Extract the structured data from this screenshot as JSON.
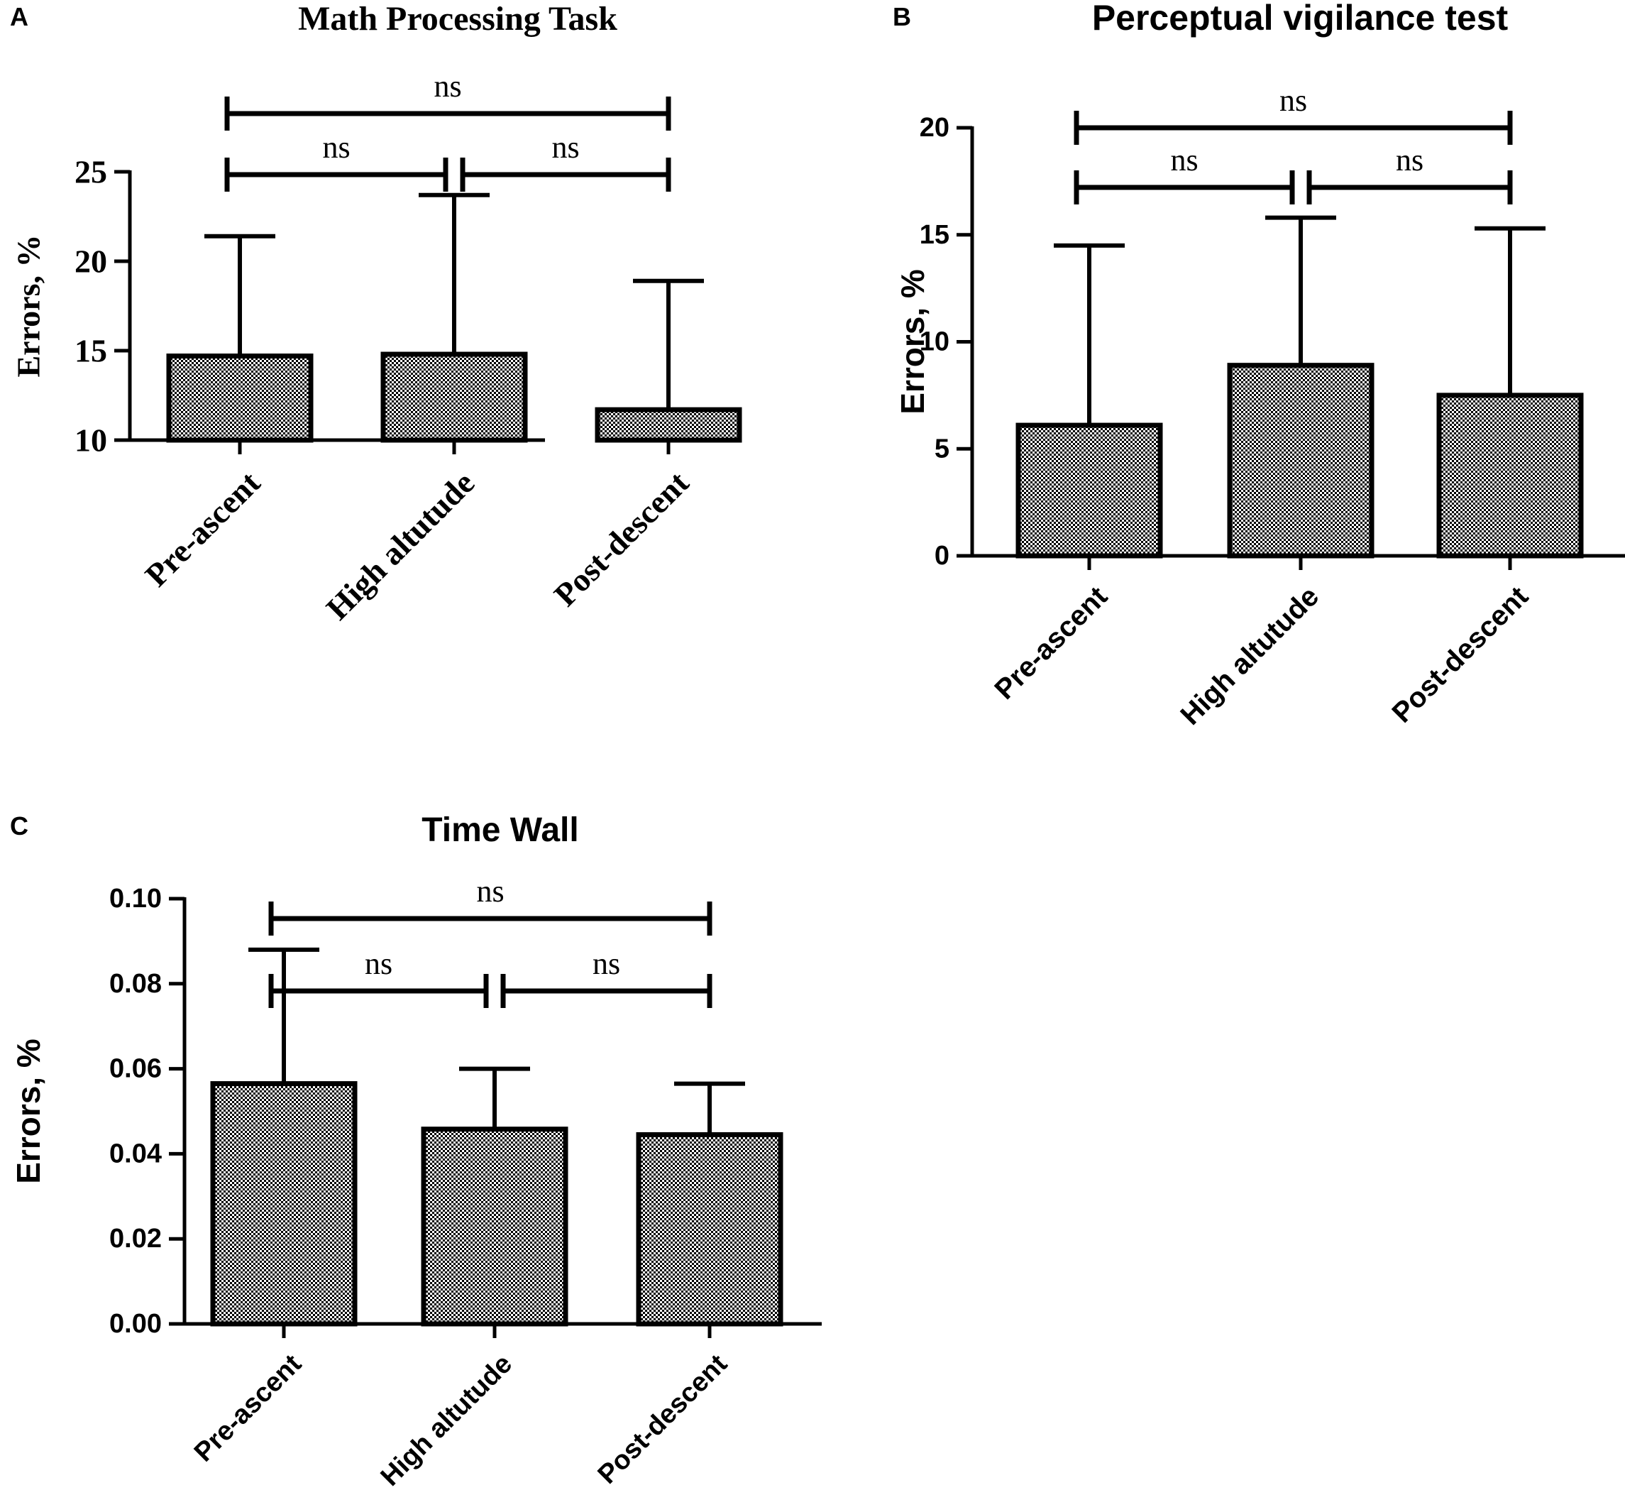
{
  "figure": {
    "panels": [
      "A",
      "B",
      "C"
    ]
  },
  "chart_data": [
    {
      "panel": "A",
      "type": "bar",
      "title": "Math Processing Task",
      "xlabel": "",
      "ylabel": "Errors, %",
      "categories": [
        "Pre-ascent",
        "High altutude",
        "Post-descent"
      ],
      "values": [
        14.7,
        14.8,
        11.7
      ],
      "error_upper": [
        21.4,
        23.7,
        18.9
      ],
      "ylim": [
        10,
        25
      ],
      "yticks": [
        10,
        15,
        20,
        25
      ],
      "ytick_labels": [
        "10",
        "15",
        "20",
        "25"
      ],
      "grid": false,
      "fill_pattern": "checkered",
      "significance": [
        {
          "from": 0,
          "to": 2,
          "label": "ns"
        },
        {
          "from": 0,
          "to": 1,
          "label": "ns"
        },
        {
          "from": 1,
          "to": 2,
          "label": "ns"
        }
      ]
    },
    {
      "panel": "B",
      "type": "bar",
      "title": "Perceptual vigilance test",
      "xlabel": "",
      "ylabel": "Errors, %",
      "categories": [
        "Pre-ascent",
        "High altutude",
        "Post-descent"
      ],
      "values": [
        6.1,
        8.9,
        7.5
      ],
      "error_upper": [
        14.5,
        15.8,
        15.3
      ],
      "ylim": [
        0,
        20
      ],
      "yticks": [
        0,
        5,
        10,
        15,
        20
      ],
      "ytick_labels": [
        "0",
        "5",
        "10",
        "15",
        "20"
      ],
      "grid": false,
      "fill_pattern": "checkered",
      "significance": [
        {
          "from": 0,
          "to": 2,
          "label": "ns"
        },
        {
          "from": 0,
          "to": 1,
          "label": "ns"
        },
        {
          "from": 1,
          "to": 2,
          "label": "ns"
        }
      ]
    },
    {
      "panel": "C",
      "type": "bar",
      "title": "Time Wall",
      "xlabel": "",
      "ylabel": "Errors, %",
      "categories": [
        "Pre-ascent",
        "High altutude",
        "Post-descent"
      ],
      "values": [
        0.0565,
        0.0458,
        0.0445
      ],
      "error_upper": [
        0.088,
        0.06,
        0.0565
      ],
      "ylim": [
        0,
        0.1
      ],
      "yticks": [
        0,
        0.02,
        0.04,
        0.06,
        0.08,
        0.1
      ],
      "ytick_labels": [
        "0.00",
        "0.02",
        "0.04",
        "0.06",
        "0.08",
        "0.10"
      ],
      "grid": false,
      "fill_pattern": "checkered",
      "significance": [
        {
          "from": 0,
          "to": 2,
          "label": "ns"
        },
        {
          "from": 0,
          "to": 1,
          "label": "ns"
        },
        {
          "from": 1,
          "to": 2,
          "label": "ns"
        }
      ]
    }
  ]
}
